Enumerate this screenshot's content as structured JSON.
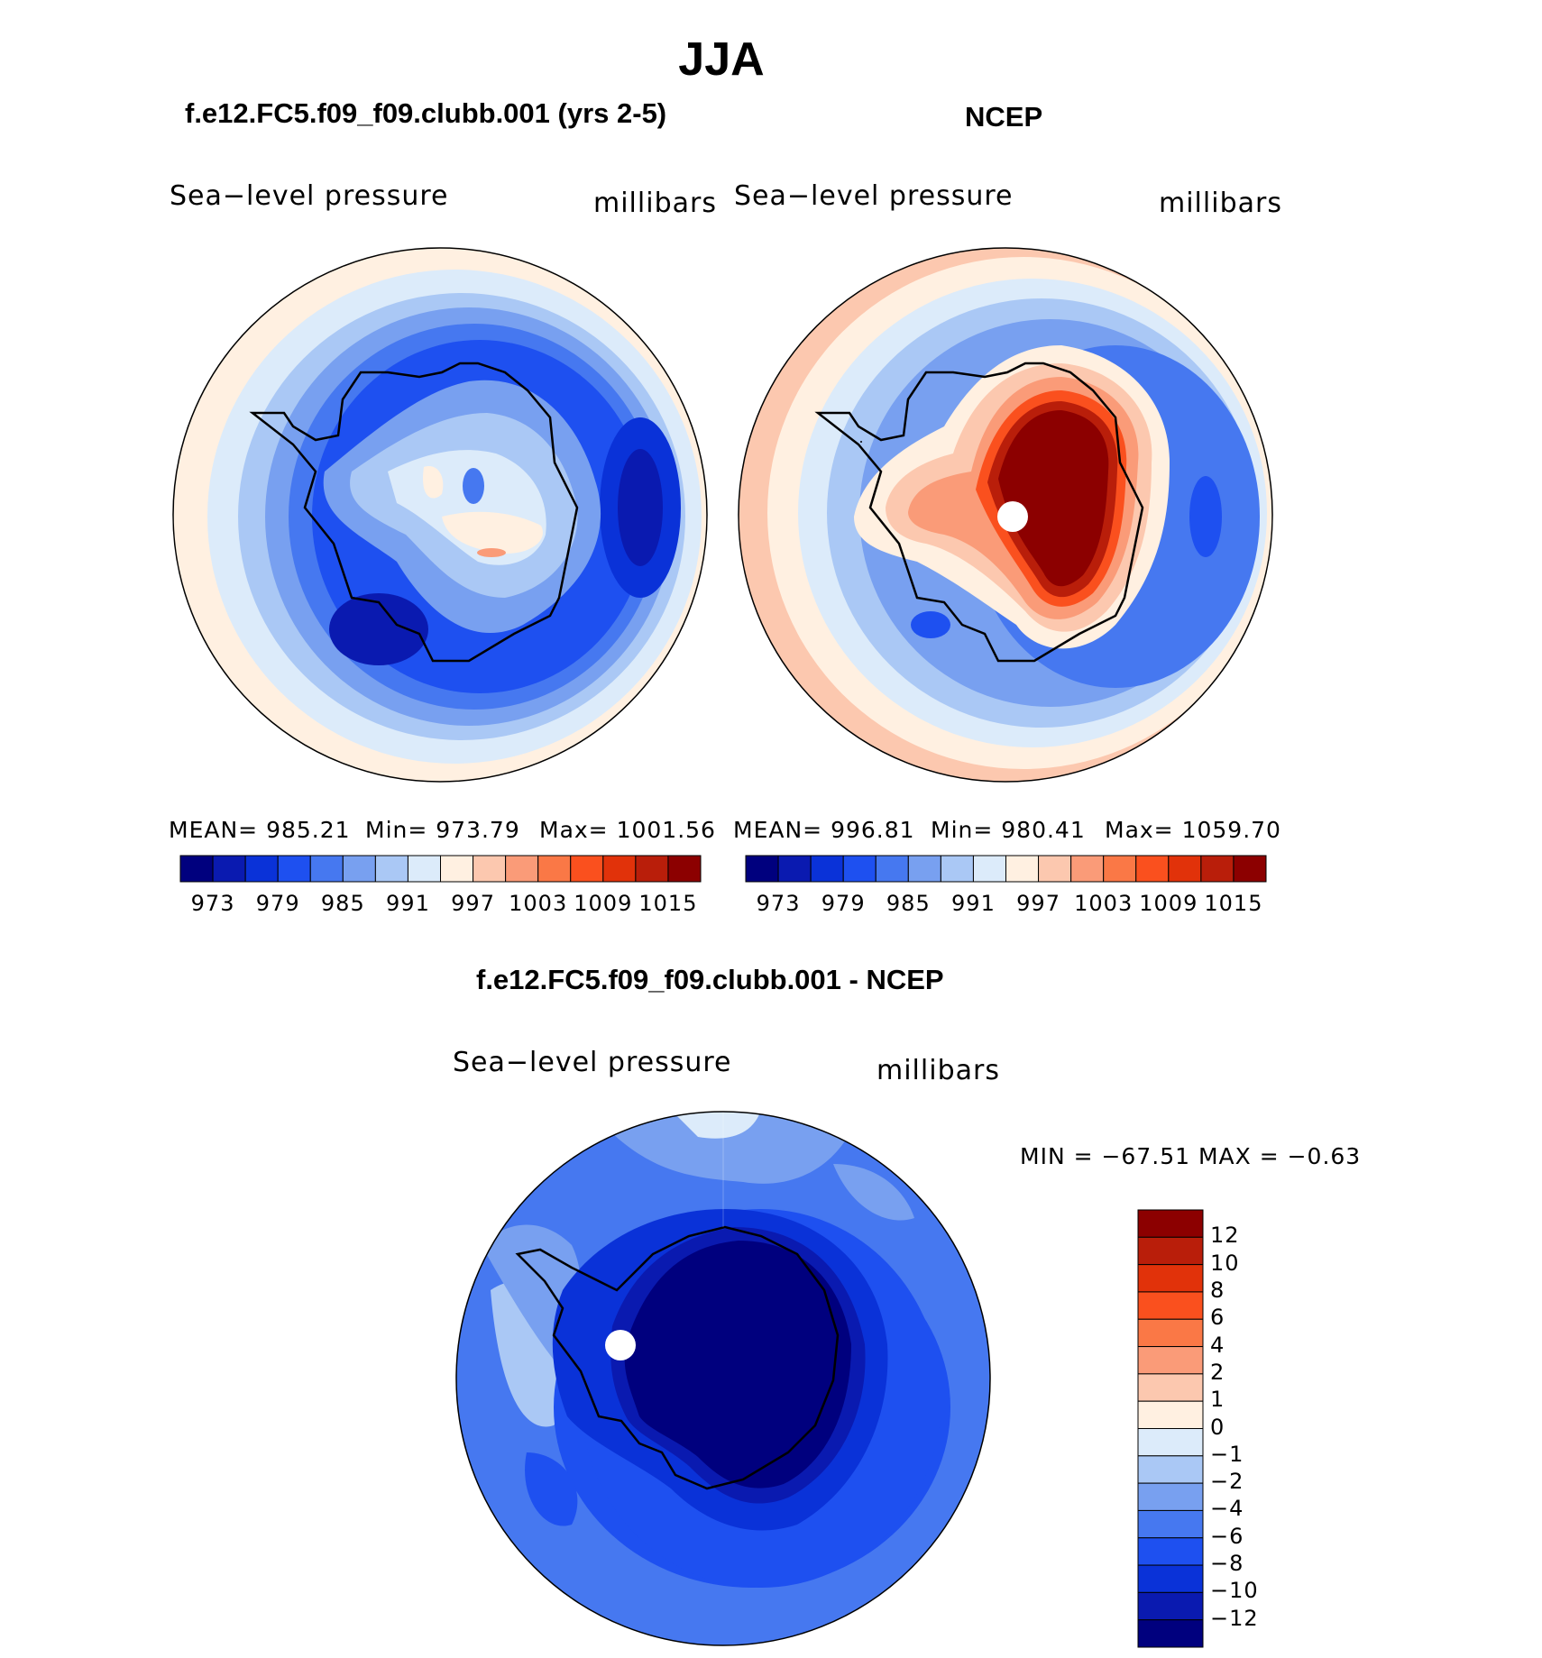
{
  "title": "JJA",
  "panels": [
    {
      "title": "f.e12.FC5.f09_f09.clubb.001 (yrs 2-5)",
      "variable": "Sea−level pressure",
      "units": "millibars",
      "mean": "MEAN=  985.21",
      "min": "Min=  973.79",
      "max": "Max=  1001.56"
    },
    {
      "title": "NCEP",
      "variable": "Sea−level pressure",
      "units": "millibars",
      "mean": "MEAN=  996.81",
      "min": "Min=  980.41",
      "max": "Max=  1059.70"
    }
  ],
  "difference": {
    "title": "f.e12.FC5.f09_f09.clubb.001 - NCEP",
    "variable": "Sea−level pressure",
    "units": "millibars",
    "minmax": "MIN  =  −67.51  MAX  =    −0.63"
  },
  "colorbar_abs": {
    "colors": [
      "#00007e",
      "#0a1ab0",
      "#0a32d8",
      "#1e50f0",
      "#4678f0",
      "#78a0f0",
      "#aac8f5",
      "#dcebfa",
      "#fff0e1",
      "#fcc8af",
      "#fa9b78",
      "#fa7846",
      "#fa501e",
      "#e1320a",
      "#b91e0a",
      "#8c0000"
    ],
    "tick_labels": [
      "973",
      "979",
      "985",
      "991",
      "997",
      "1003",
      "1009",
      "1015"
    ]
  },
  "colorbar_diff": {
    "colors": [
      "#8c0000",
      "#b91e0a",
      "#e1320a",
      "#fa501e",
      "#fa7846",
      "#fa9b78",
      "#fcc8af",
      "#fff0e1",
      "#dcebfa",
      "#aac8f5",
      "#78a0f0",
      "#4678f0",
      "#1e50f0",
      "#0a32d8",
      "#0a1ab0",
      "#00007e"
    ],
    "tick_labels": [
      "12",
      "10",
      "8",
      "6",
      "4",
      "2",
      "1",
      "0",
      "−1",
      "−2",
      "−4",
      "−6",
      "−8",
      "−10",
      "−12"
    ]
  },
  "chart_data": [
    {
      "type": "polar-contour-map",
      "title": "f.e12.FC5.f09_f09.clubb.001 (yrs 2-5)",
      "projection": "south polar stereographic",
      "variable": "Sea-level pressure",
      "units": "millibars",
      "mean": 985.21,
      "min": 973.79,
      "max": 1001.56,
      "levels": [
        973,
        976,
        979,
        982,
        985,
        988,
        991,
        994,
        997,
        1000,
        1003,
        1006,
        1009,
        1012,
        1015
      ]
    },
    {
      "type": "polar-contour-map",
      "title": "NCEP",
      "projection": "south polar stereographic",
      "variable": "Sea-level pressure",
      "units": "millibars",
      "mean": 996.81,
      "min": 980.41,
      "max": 1059.7,
      "levels": [
        973,
        976,
        979,
        982,
        985,
        988,
        991,
        994,
        997,
        1000,
        1003,
        1006,
        1009,
        1012,
        1015
      ]
    },
    {
      "type": "polar-contour-map",
      "title": "f.e12.FC5.f09_f09.clubb.001 - NCEP",
      "projection": "south polar stereographic",
      "variable": "Sea-level pressure",
      "units": "millibars",
      "min": -67.51,
      "max": -0.63,
      "levels": [
        -12,
        -10,
        -8,
        -6,
        -4,
        -2,
        -1,
        0,
        1,
        2,
        4,
        6,
        8,
        10,
        12
      ]
    }
  ]
}
